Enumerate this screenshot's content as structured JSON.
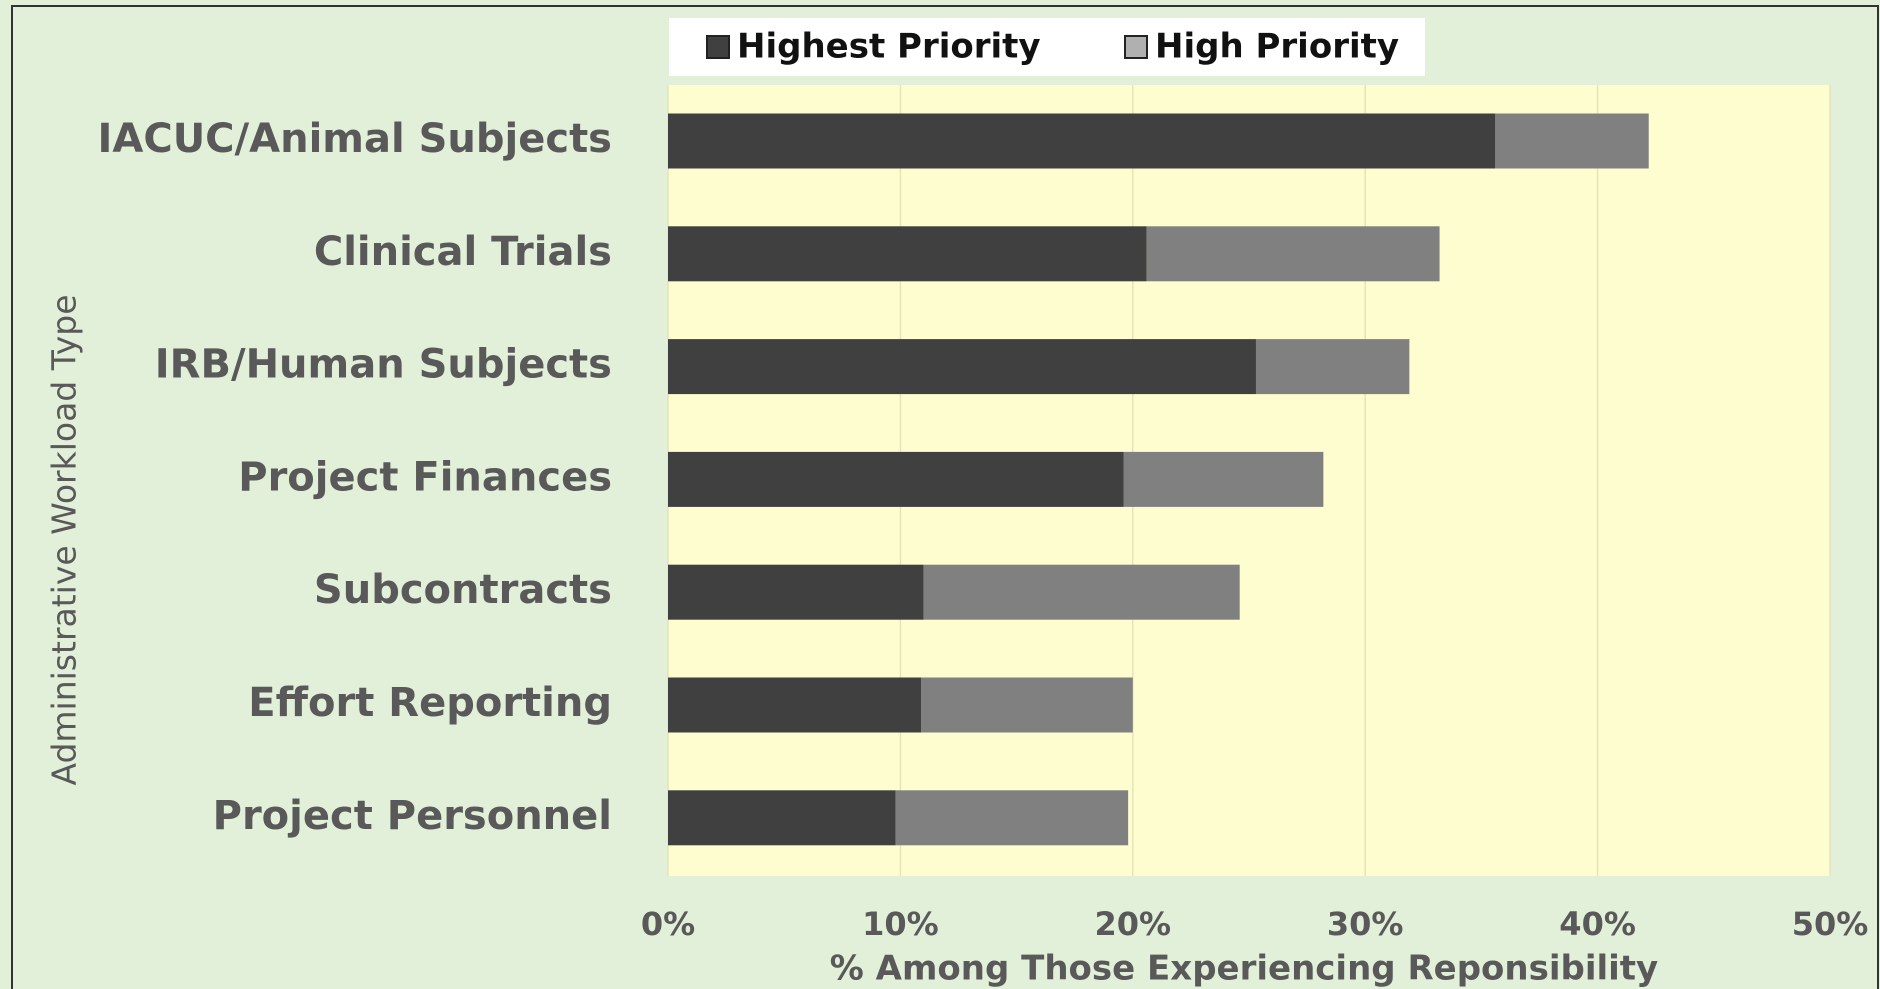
{
  "chart_data": {
    "type": "bar",
    "orientation": "horizontal",
    "stacked": true,
    "y_label": "Administrative Workload Type",
    "x_label": "% Among Those Experiencing Reponsibility",
    "categories": [
      "IACUC/Animal Subjects",
      "Clinical Trials",
      "IRB/Human Subjects",
      "Project Finances",
      "Subcontracts",
      "Effort Reporting",
      "Project Personnel"
    ],
    "series": [
      {
        "name": "Highest Priority",
        "color": "#404040",
        "values": [
          35.6,
          20.6,
          25.3,
          19.6,
          11.0,
          10.9,
          9.8
        ]
      },
      {
        "name": "High Priority",
        "color": "#808080",
        "values": [
          6.6,
          12.6,
          6.6,
          8.6,
          13.6,
          9.1,
          10.0
        ]
      }
    ],
    "xlim": [
      0,
      50
    ],
    "xticks": [
      {
        "value": 0,
        "label": "0%"
      },
      {
        "value": 10,
        "label": "10%"
      },
      {
        "value": 20,
        "label": "20%"
      },
      {
        "value": 30,
        "label": "30%"
      },
      {
        "value": 40,
        "label": "40%"
      },
      {
        "value": 50,
        "label": "50%"
      }
    ],
    "grid": true,
    "legend": "top"
  }
}
